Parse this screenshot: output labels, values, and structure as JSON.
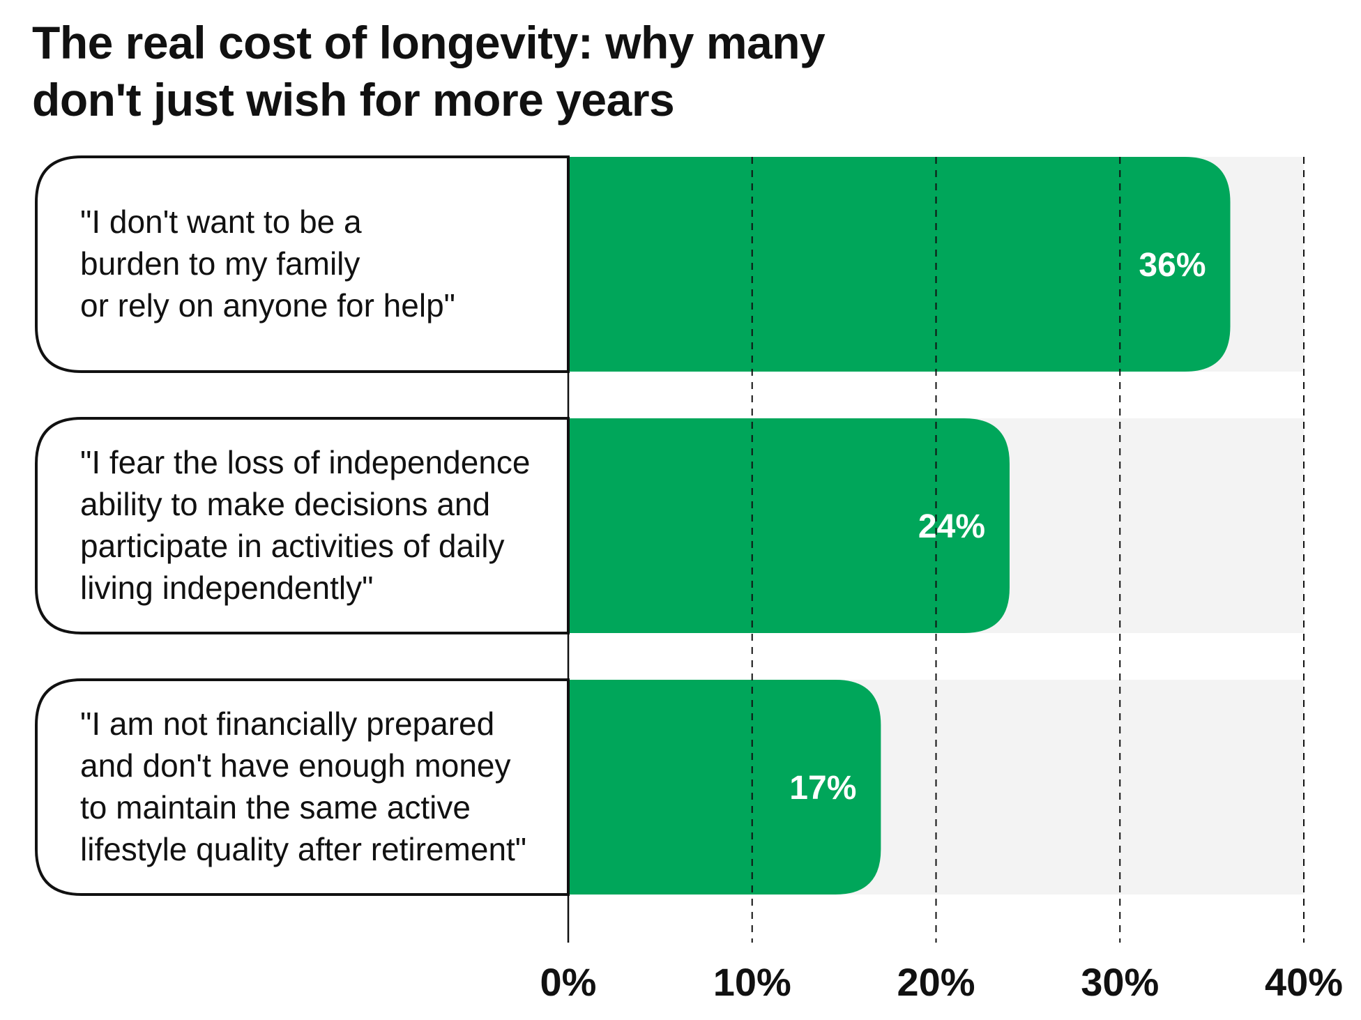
{
  "chart_data": {
    "type": "bar",
    "orientation": "horizontal",
    "title_lines": [
      "The real cost of longevity: why many",
      "don't just wish for more years"
    ],
    "categories": [
      [
        "\"I don't want to be a",
        "burden to my family",
        "or rely on anyone for help\""
      ],
      [
        "\"I fear the loss of independence",
        "ability to make decisions and",
        "participate in activities of daily",
        "living independently\""
      ],
      [
        "\"I am not financially prepared",
        "and don't have enough money",
        "to maintain the same active",
        "lifestyle quality after retirement\""
      ]
    ],
    "values": [
      36,
      24,
      17
    ],
    "value_labels": [
      "36%",
      "24%",
      "17%"
    ],
    "xlim": [
      0,
      40
    ],
    "ticks": [
      0,
      10,
      20,
      30,
      40
    ],
    "tick_labels": [
      "0%",
      "10%",
      "20%",
      "30%",
      "40%"
    ],
    "grid": "dashed vertical",
    "colors": {
      "bar": "#00a65a",
      "track": "#f3f3f3",
      "text": "#111111",
      "value_text": "#ffffff"
    }
  }
}
